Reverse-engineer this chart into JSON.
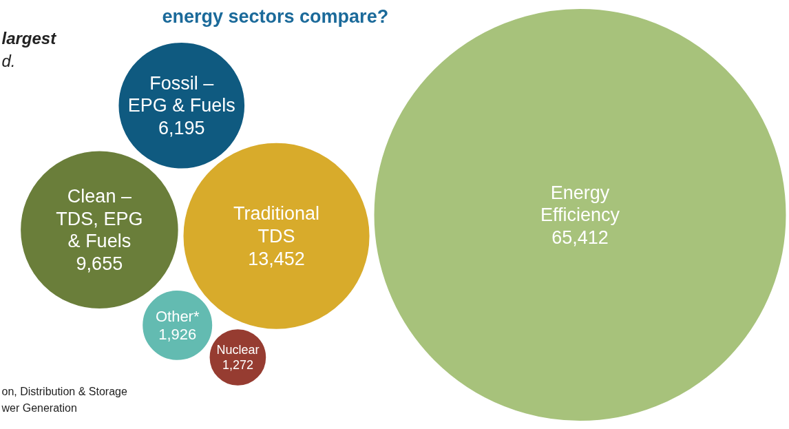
{
  "chart_data": {
    "type": "other",
    "title": "energy sectors compare?",
    "subtitle": "largest\nd.",
    "categories": [
      "Traditional\nTDS",
      "Clean –\nTDS, EPG\n& Fuels",
      "Other*",
      "Nuclear",
      "Fossil –\nEPG & Fuels",
      "Energy\nEfficiency"
    ],
    "values": [
      13452,
      9655,
      1926,
      1272,
      6195,
      65412
    ],
    "value_labels": [
      "13,452",
      "9,655",
      "1,926",
      "1,272",
      "6,195",
      "65,412"
    ],
    "colors": [
      "#d8ab2b",
      "#6a7e3a",
      "#63bbb1",
      "#963c31",
      "#0f5a80",
      "#a7c27b"
    ],
    "annotations": [
      "on, Distribution & Storage",
      "wer Generation"
    ]
  }
}
